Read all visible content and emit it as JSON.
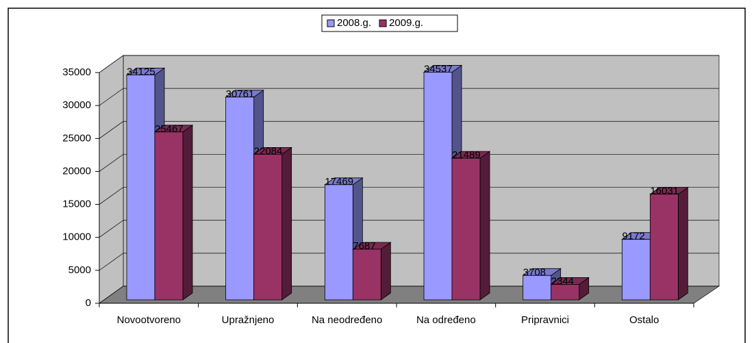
{
  "chart_data": {
    "type": "bar3d",
    "categories": [
      "Novootvoreno",
      "Upražnjeno",
      "Na neodređeno",
      "Na određeno",
      "Pripravnici",
      "Ostalo"
    ],
    "series": [
      {
        "name": "2008.g.",
        "color": "#9999ff",
        "values": [
          34125,
          30761,
          17469,
          34537,
          3708,
          9172
        ]
      },
      {
        "name": "2009.g.",
        "color": "#993366",
        "values": [
          25467,
          22084,
          7687,
          21489,
          2344,
          16031
        ]
      }
    ],
    "ylim": [
      0,
      35000
    ],
    "yticks": [
      0,
      5000,
      10000,
      15000,
      20000,
      25000,
      30000,
      35000
    ],
    "grid": true,
    "legend": "top",
    "data_labels": true
  }
}
